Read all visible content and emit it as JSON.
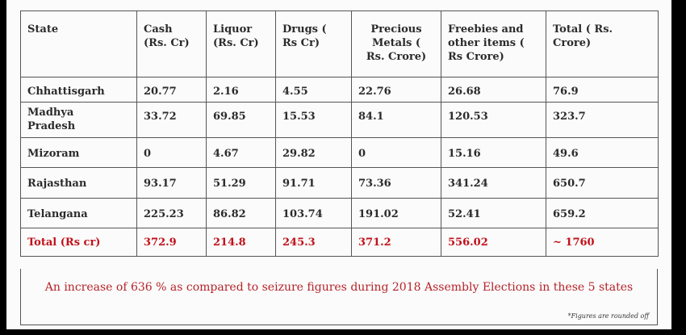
{
  "table": {
    "headers": [
      "State",
      "Cash\n(Rs. Cr)",
      "Liquor\n(Rs. Cr)",
      "Drugs (\nRs Cr)",
      "Precious\nMetals (\nRs. Crore)",
      "Freebies and\nother items (\nRs Crore)",
      "Total ( Rs.\nCrore)"
    ],
    "rows": [
      [
        "Chhattisgarh",
        "20.77",
        "2.16",
        "4.55",
        "22.76",
        "26.68",
        "76.9"
      ],
      [
        "Madhya\nPradesh",
        "33.72",
        "69.85",
        "15.53",
        "84.1",
        "120.53",
        "323.7"
      ],
      [
        "Mizoram",
        "0",
        "4.67",
        "29.82",
        "0",
        "15.16",
        "49.6"
      ],
      [
        "Rajasthan",
        "93.17",
        "51.29",
        "91.71",
        "73.36",
        "341.24",
        "650.7"
      ],
      [
        "Telangana",
        "225.23",
        "86.82",
        "103.74",
        "191.02",
        "52.41",
        "659.2"
      ]
    ],
    "total": [
      "Total (Rs cr)",
      "372.9",
      "214.8",
      "245.3",
      "371.2",
      "556.02",
      "~ 1760"
    ]
  },
  "note": "An increase of 636 % as compared to seizure figures during 2018 Assembly Elections in these 5 states",
  "footnote": "*Figures are rounded off",
  "colors": {
    "total_text": "#c0111a",
    "note_text": "#b5232a"
  }
}
